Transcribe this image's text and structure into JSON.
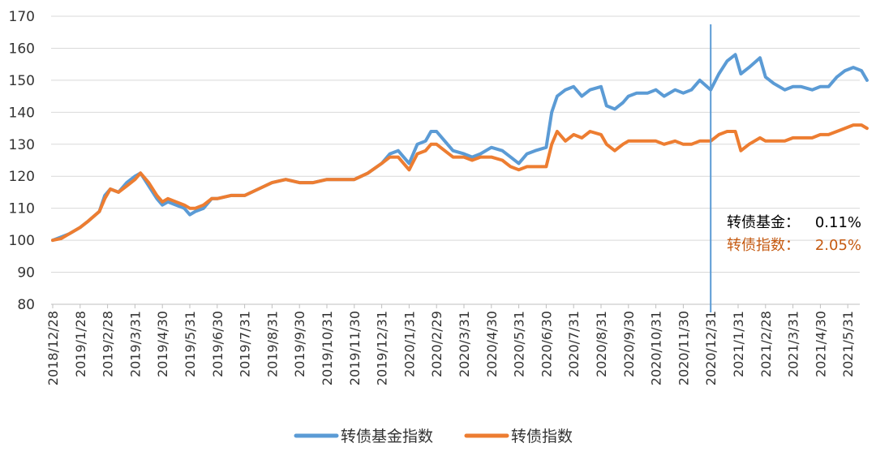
{
  "chart_data": {
    "type": "line",
    "title": "",
    "xlabel": "",
    "ylabel": "",
    "ylim": [
      80,
      170
    ],
    "yticks": [
      80,
      90,
      100,
      110,
      120,
      130,
      140,
      150,
      160,
      170
    ],
    "grid": "horizontal",
    "legend_position": "bottom",
    "x_tick_labels": [
      "2018/12/28",
      "2019/1/28",
      "2019/2/28",
      "2019/3/31",
      "2019/4/30",
      "2019/5/31",
      "2019/6/30",
      "2019/7/31",
      "2019/8/31",
      "2019/9/30",
      "2019/10/31",
      "2019/11/30",
      "2019/12/31",
      "2020/1/31",
      "2020/2/29",
      "2020/3/31",
      "2020/4/30",
      "2020/5/31",
      "2020/6/30",
      "2020/7/31",
      "2020/8/31",
      "2020/9/30",
      "2020/10/31",
      "2020/11/30",
      "2020/12/31",
      "2021/1/31",
      "2021/2/28",
      "2021/3/31",
      "2021/4/30",
      "2021/5/31"
    ],
    "vertical_marker": {
      "at": "2020/12/31",
      "color": "#5b9bd5"
    },
    "annotations": [
      {
        "label": "转债基金：",
        "value": "0.11%",
        "color": "#000000"
      },
      {
        "label": "转债指数：",
        "value": "2.05%",
        "color": "#c55a11"
      }
    ],
    "series": [
      {
        "name": "转债基金指数",
        "color": "#5b9bd5",
        "values": [
          [
            0,
            100
          ],
          [
            0.3,
            101
          ],
          [
            0.6,
            102
          ],
          [
            1,
            104
          ],
          [
            1.3,
            106
          ],
          [
            1.7,
            109
          ],
          [
            1.9,
            114
          ],
          [
            2.1,
            116
          ],
          [
            2.4,
            115
          ],
          [
            2.7,
            118
          ],
          [
            3,
            120
          ],
          [
            3.2,
            121
          ],
          [
            3.5,
            117
          ],
          [
            3.8,
            113
          ],
          [
            4,
            111
          ],
          [
            4.2,
            112
          ],
          [
            4.5,
            111
          ],
          [
            4.8,
            110
          ],
          [
            5,
            108
          ],
          [
            5.2,
            109
          ],
          [
            5.5,
            110
          ],
          [
            5.8,
            113
          ],
          [
            6,
            113
          ],
          [
            6.5,
            114
          ],
          [
            7,
            114
          ],
          [
            7.5,
            116
          ],
          [
            8,
            118
          ],
          [
            8.5,
            119
          ],
          [
            9,
            118
          ],
          [
            9.5,
            118
          ],
          [
            10,
            119
          ],
          [
            10.5,
            119
          ],
          [
            11,
            119
          ],
          [
            11.5,
            121
          ],
          [
            12,
            124
          ],
          [
            12.3,
            127
          ],
          [
            12.6,
            128
          ],
          [
            13,
            124
          ],
          [
            13.3,
            130
          ],
          [
            13.6,
            131
          ],
          [
            13.8,
            134
          ],
          [
            14,
            134
          ],
          [
            14.3,
            131
          ],
          [
            14.6,
            128
          ],
          [
            15,
            127
          ],
          [
            15.3,
            126
          ],
          [
            15.6,
            127
          ],
          [
            16,
            129
          ],
          [
            16.4,
            128
          ],
          [
            16.7,
            126
          ],
          [
            17,
            124
          ],
          [
            17.3,
            127
          ],
          [
            17.6,
            128
          ],
          [
            18,
            129
          ],
          [
            18.2,
            140
          ],
          [
            18.4,
            145
          ],
          [
            18.7,
            147
          ],
          [
            19,
            148
          ],
          [
            19.3,
            145
          ],
          [
            19.6,
            147
          ],
          [
            20,
            148
          ],
          [
            20.2,
            142
          ],
          [
            20.5,
            141
          ],
          [
            20.8,
            143
          ],
          [
            21,
            145
          ],
          [
            21.3,
            146
          ],
          [
            21.7,
            146
          ],
          [
            22,
            147
          ],
          [
            22.3,
            145
          ],
          [
            22.7,
            147
          ],
          [
            23,
            146
          ],
          [
            23.3,
            147
          ],
          [
            23.6,
            150
          ],
          [
            24,
            147
          ],
          [
            24.3,
            152
          ],
          [
            24.6,
            156
          ],
          [
            24.9,
            158
          ],
          [
            25.1,
            152
          ],
          [
            25.4,
            154
          ],
          [
            25.8,
            157
          ],
          [
            26,
            151
          ],
          [
            26.3,
            149
          ],
          [
            26.7,
            147
          ],
          [
            27,
            148
          ],
          [
            27.3,
            148
          ],
          [
            27.7,
            147
          ],
          [
            28,
            148
          ],
          [
            28.3,
            148
          ],
          [
            28.6,
            151
          ],
          [
            28.9,
            153
          ],
          [
            29.2,
            154
          ],
          [
            29.5,
            153
          ],
          [
            29.7,
            150
          ]
        ]
      },
      {
        "name": "转债指数",
        "color": "#ed7d31",
        "values": [
          [
            0,
            100
          ],
          [
            0.3,
            100.5
          ],
          [
            0.6,
            102
          ],
          [
            1,
            104
          ],
          [
            1.3,
            106
          ],
          [
            1.7,
            109
          ],
          [
            1.9,
            113
          ],
          [
            2.1,
            116
          ],
          [
            2.4,
            115
          ],
          [
            2.7,
            117
          ],
          [
            3,
            119
          ],
          [
            3.2,
            121
          ],
          [
            3.5,
            118
          ],
          [
            3.8,
            114
          ],
          [
            4,
            112
          ],
          [
            4.2,
            113
          ],
          [
            4.5,
            112
          ],
          [
            4.8,
            111
          ],
          [
            5,
            110
          ],
          [
            5.2,
            110
          ],
          [
            5.5,
            111
          ],
          [
            5.8,
            113
          ],
          [
            6,
            113
          ],
          [
            6.5,
            114
          ],
          [
            7,
            114
          ],
          [
            7.5,
            116
          ],
          [
            8,
            118
          ],
          [
            8.5,
            119
          ],
          [
            9,
            118
          ],
          [
            9.5,
            118
          ],
          [
            10,
            119
          ],
          [
            10.5,
            119
          ],
          [
            11,
            119
          ],
          [
            11.5,
            121
          ],
          [
            12,
            124
          ],
          [
            12.3,
            126
          ],
          [
            12.6,
            126
          ],
          [
            13,
            122
          ],
          [
            13.3,
            127
          ],
          [
            13.6,
            128
          ],
          [
            13.8,
            130
          ],
          [
            14,
            130
          ],
          [
            14.3,
            128
          ],
          [
            14.6,
            126
          ],
          [
            15,
            126
          ],
          [
            15.3,
            125
          ],
          [
            15.6,
            126
          ],
          [
            16,
            126
          ],
          [
            16.4,
            125
          ],
          [
            16.7,
            123
          ],
          [
            17,
            122
          ],
          [
            17.3,
            123
          ],
          [
            17.6,
            123
          ],
          [
            18,
            123
          ],
          [
            18.2,
            130
          ],
          [
            18.4,
            134
          ],
          [
            18.7,
            131
          ],
          [
            19,
            133
          ],
          [
            19.3,
            132
          ],
          [
            19.6,
            134
          ],
          [
            20,
            133
          ],
          [
            20.2,
            130
          ],
          [
            20.5,
            128
          ],
          [
            20.8,
            130
          ],
          [
            21,
            131
          ],
          [
            21.3,
            131
          ],
          [
            21.7,
            131
          ],
          [
            22,
            131
          ],
          [
            22.3,
            130
          ],
          [
            22.7,
            131
          ],
          [
            23,
            130
          ],
          [
            23.3,
            130
          ],
          [
            23.6,
            131
          ],
          [
            24,
            131
          ],
          [
            24.3,
            133
          ],
          [
            24.6,
            134
          ],
          [
            24.9,
            134
          ],
          [
            25.1,
            128
          ],
          [
            25.4,
            130
          ],
          [
            25.8,
            132
          ],
          [
            26,
            131
          ],
          [
            26.3,
            131
          ],
          [
            26.7,
            131
          ],
          [
            27,
            132
          ],
          [
            27.3,
            132
          ],
          [
            27.7,
            132
          ],
          [
            28,
            133
          ],
          [
            28.3,
            133
          ],
          [
            28.6,
            134
          ],
          [
            28.9,
            135
          ],
          [
            29.2,
            136
          ],
          [
            29.5,
            136
          ],
          [
            29.7,
            135
          ]
        ]
      }
    ]
  }
}
